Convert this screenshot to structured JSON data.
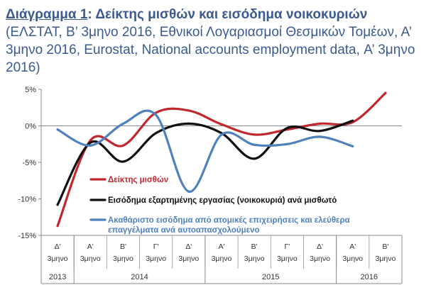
{
  "title": {
    "prefix": "Διάγραμμα 1",
    "colon": ": ",
    "main": "Δείκτης μισθών και εισόδημα νοικοκυριών",
    "source": "(ΕΛΣΤΑΤ, Β’ 3μηνο 2016, Εθνικοί Λογαριασμοί Θεσμικών Τομέων, Α’ 3μηνο 2016, Eurostat, National accounts employment data, Α’ 3μηνο 2016)"
  },
  "chart_data": {
    "type": "line",
    "title": "Διάγραμμα 1: Δείκτης μισθών και εισόδημα νοικοκυριών",
    "categories": [
      "Δ' 3μηνο 2013",
      "Α' 3μηνο 2014",
      "Β' 3μηνο 2014",
      "Γ' 3μηνο 2014",
      "Δ' 3μηνο 2014",
      "Α' 3μηνο 2015",
      "Β' 3μηνο 2015",
      "Γ' 3μηνο 2015",
      "Δ' 3μηνο 2015",
      "Α' 3μηνο 2016",
      "Β' 3μηνο 2016"
    ],
    "x_tick_labels": [
      {
        "quarter": "Δ'",
        "word": "3μηνο"
      },
      {
        "quarter": "Α'",
        "word": "3μηνο"
      },
      {
        "quarter": "Β'",
        "word": "3μηνο"
      },
      {
        "quarter": "Γ'",
        "word": "3μηνο"
      },
      {
        "quarter": "Δ'",
        "word": "3μηνο"
      },
      {
        "quarter": "Α'",
        "word": "3μηνο"
      },
      {
        "quarter": "Β'",
        "word": "3μηνο"
      },
      {
        "quarter": "Γ'",
        "word": "3μηνο"
      },
      {
        "quarter": "Δ'",
        "word": "3μηνο"
      },
      {
        "quarter": "Α'",
        "word": "3μηνο"
      },
      {
        "quarter": "Β'",
        "word": "3μηνο"
      }
    ],
    "year_groups": [
      {
        "label": "2013",
        "start": 0,
        "end": 0
      },
      {
        "label": "2014",
        "start": 1,
        "end": 4
      },
      {
        "label": "2015",
        "start": 5,
        "end": 8
      },
      {
        "label": "2016",
        "start": 9,
        "end": 10
      }
    ],
    "ylim": [
      -15,
      5
    ],
    "yticks": [
      5,
      0,
      -5,
      -10,
      -15
    ],
    "ytick_labels": [
      "5%",
      "0%",
      "-5%",
      "-10%",
      "-15%"
    ],
    "y_format": "percent",
    "grid": false,
    "series": [
      {
        "name": "Δείκτης μισθών",
        "color": "#c0282e",
        "values": [
          -13.7,
          -2.0,
          -2.7,
          1.8,
          2.1,
          0.2,
          -1.2,
          -0.5,
          0.3,
          0.5,
          4.5
        ]
      },
      {
        "name": "Εισόδημα εξαρτημένης εργασίας (νοικοκυριά) ανά μισθωτό",
        "color": "#111111",
        "values": [
          -10.8,
          -2.3,
          -4.9,
          -1.0,
          0.3,
          -1.0,
          -4.5,
          -0.3,
          -0.7,
          0.7,
          null
        ]
      },
      {
        "name": "Ακαθάριστο εισόδημα από ατομικές επιχειρήσεις και ελεύθερα επαγγέλματα ανά αυτοαπασχολούμενο",
        "color": "#4f81bd",
        "values": [
          -0.5,
          -2.7,
          0.3,
          1.5,
          -9.0,
          -1.2,
          -2.6,
          -2.5,
          -1.5,
          -2.8,
          null
        ]
      }
    ]
  }
}
